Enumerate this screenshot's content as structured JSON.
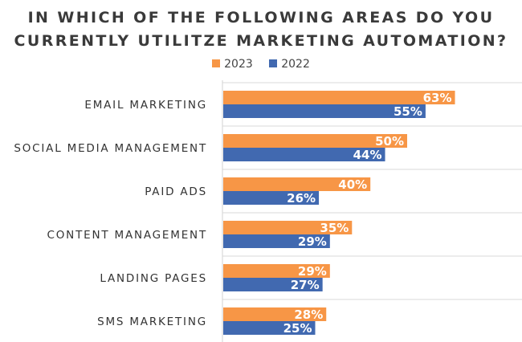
{
  "chart_data": {
    "type": "bar",
    "orientation": "horizontal",
    "title": "IN WHICH OF THE FOLLOWING AREAS DO YOU CURRENTLY UTILITZE MARKETING AUTOMATION?",
    "title_lines": [
      "IN WHICH OF THE FOLLOWING AREAS DO YOU",
      "CURRENTLY UTILITZE MARKETING AUTOMATION?"
    ],
    "categories": [
      "EMAIL MARKETING",
      "SOCIAL MEDIA MANAGEMENT",
      "PAID ADS",
      "CONTENT MANAGEMENT",
      "LANDING PAGES",
      "SMS MARKETING"
    ],
    "series": [
      {
        "name": "2023",
        "color": "#F79646",
        "values": [
          63,
          50,
          40,
          35,
          29,
          28
        ]
      },
      {
        "name": "2022",
        "color": "#4169B0",
        "values": [
          55,
          44,
          26,
          29,
          27,
          25
        ]
      }
    ],
    "value_suffix": "%",
    "xlim": [
      0,
      80
    ],
    "legend": "top",
    "grid": "horizontal separators"
  }
}
